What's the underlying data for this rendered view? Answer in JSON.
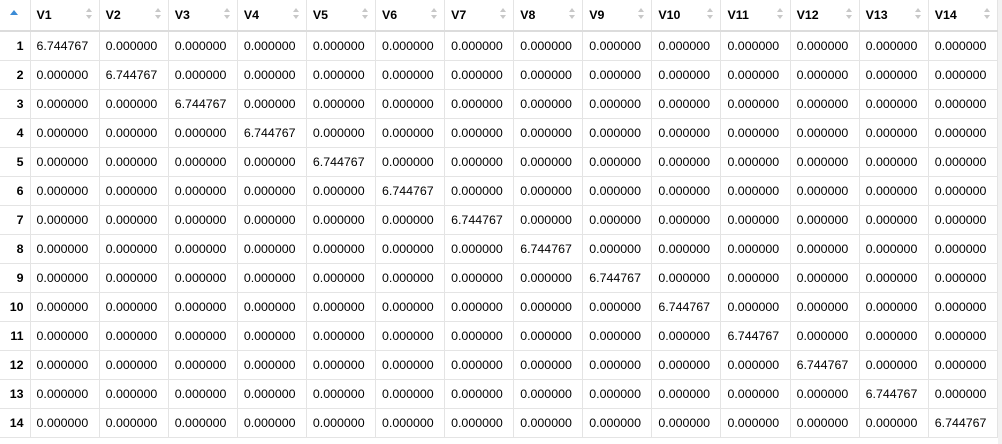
{
  "columns": [
    "V1",
    "V2",
    "V3",
    "V4",
    "V5",
    "V6",
    "V7",
    "V8",
    "V9",
    "V10",
    "V11",
    "V12",
    "V13",
    "V14"
  ],
  "rows": [
    {
      "label": "1",
      "cells": [
        "6.744767",
        "0.000000",
        "0.000000",
        "0.000000",
        "0.000000",
        "0.000000",
        "0.000000",
        "0.000000",
        "0.000000",
        "0.000000",
        "0.000000",
        "0.000000",
        "0.000000",
        "0.000000"
      ]
    },
    {
      "label": "2",
      "cells": [
        "0.000000",
        "6.744767",
        "0.000000",
        "0.000000",
        "0.000000",
        "0.000000",
        "0.000000",
        "0.000000",
        "0.000000",
        "0.000000",
        "0.000000",
        "0.000000",
        "0.000000",
        "0.000000"
      ]
    },
    {
      "label": "3",
      "cells": [
        "0.000000",
        "0.000000",
        "6.744767",
        "0.000000",
        "0.000000",
        "0.000000",
        "0.000000",
        "0.000000",
        "0.000000",
        "0.000000",
        "0.000000",
        "0.000000",
        "0.000000",
        "0.000000"
      ]
    },
    {
      "label": "4",
      "cells": [
        "0.000000",
        "0.000000",
        "0.000000",
        "6.744767",
        "0.000000",
        "0.000000",
        "0.000000",
        "0.000000",
        "0.000000",
        "0.000000",
        "0.000000",
        "0.000000",
        "0.000000",
        "0.000000"
      ]
    },
    {
      "label": "5",
      "cells": [
        "0.000000",
        "0.000000",
        "0.000000",
        "0.000000",
        "6.744767",
        "0.000000",
        "0.000000",
        "0.000000",
        "0.000000",
        "0.000000",
        "0.000000",
        "0.000000",
        "0.000000",
        "0.000000"
      ]
    },
    {
      "label": "6",
      "cells": [
        "0.000000",
        "0.000000",
        "0.000000",
        "0.000000",
        "0.000000",
        "6.744767",
        "0.000000",
        "0.000000",
        "0.000000",
        "0.000000",
        "0.000000",
        "0.000000",
        "0.000000",
        "0.000000"
      ]
    },
    {
      "label": "7",
      "cells": [
        "0.000000",
        "0.000000",
        "0.000000",
        "0.000000",
        "0.000000",
        "0.000000",
        "6.744767",
        "0.000000",
        "0.000000",
        "0.000000",
        "0.000000",
        "0.000000",
        "0.000000",
        "0.000000"
      ]
    },
    {
      "label": "8",
      "cells": [
        "0.000000",
        "0.000000",
        "0.000000",
        "0.000000",
        "0.000000",
        "0.000000",
        "0.000000",
        "6.744767",
        "0.000000",
        "0.000000",
        "0.000000",
        "0.000000",
        "0.000000",
        "0.000000"
      ]
    },
    {
      "label": "9",
      "cells": [
        "0.000000",
        "0.000000",
        "0.000000",
        "0.000000",
        "0.000000",
        "0.000000",
        "0.000000",
        "0.000000",
        "6.744767",
        "0.000000",
        "0.000000",
        "0.000000",
        "0.000000",
        "0.000000"
      ]
    },
    {
      "label": "10",
      "cells": [
        "0.000000",
        "0.000000",
        "0.000000",
        "0.000000",
        "0.000000",
        "0.000000",
        "0.000000",
        "0.000000",
        "0.000000",
        "6.744767",
        "0.000000",
        "0.000000",
        "0.000000",
        "0.000000"
      ]
    },
    {
      "label": "11",
      "cells": [
        "0.000000",
        "0.000000",
        "0.000000",
        "0.000000",
        "0.000000",
        "0.000000",
        "0.000000",
        "0.000000",
        "0.000000",
        "0.000000",
        "6.744767",
        "0.000000",
        "0.000000",
        "0.000000"
      ]
    },
    {
      "label": "12",
      "cells": [
        "0.000000",
        "0.000000",
        "0.000000",
        "0.000000",
        "0.000000",
        "0.000000",
        "0.000000",
        "0.000000",
        "0.000000",
        "0.000000",
        "0.000000",
        "6.744767",
        "0.000000",
        "0.000000"
      ]
    },
    {
      "label": "13",
      "cells": [
        "0.000000",
        "0.000000",
        "0.000000",
        "0.000000",
        "0.000000",
        "0.000000",
        "0.000000",
        "0.000000",
        "0.000000",
        "0.000000",
        "0.000000",
        "0.000000",
        "6.744767",
        "0.000000"
      ]
    },
    {
      "label": "14",
      "cells": [
        "0.000000",
        "0.000000",
        "0.000000",
        "0.000000",
        "0.000000",
        "0.000000",
        "0.000000",
        "0.000000",
        "0.000000",
        "0.000000",
        "0.000000",
        "0.000000",
        "0.000000",
        "6.744767"
      ]
    }
  ],
  "icons": {
    "index_sort": "sort-ascending-icon",
    "column_sort": "sort-updown-icon"
  },
  "colors": {
    "sort_active": "#3b8bd6",
    "sort_inactive": "#c8c8c8",
    "grid_line": "#e4e4e4"
  }
}
